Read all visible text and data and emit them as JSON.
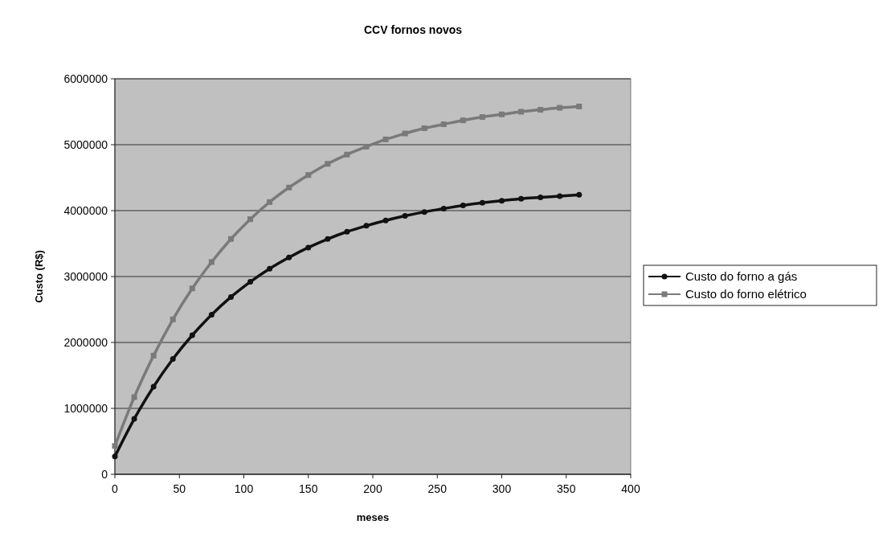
{
  "chart_data": {
    "type": "line",
    "title": "CCV fornos novos",
    "xlabel": "meses",
    "ylabel": "Custo (R$)",
    "x": [
      0,
      15,
      30,
      45,
      60,
      75,
      90,
      105,
      120,
      135,
      150,
      165,
      180,
      195,
      210,
      225,
      240,
      255,
      270,
      285,
      300,
      315,
      330,
      345,
      360
    ],
    "series": [
      {
        "name": "Custo do forno a gás",
        "color": "#111111",
        "marker": "circle",
        "values": [
          270000,
          840000,
          1330000,
          1750000,
          2110000,
          2420000,
          2690000,
          2920000,
          3120000,
          3290000,
          3440000,
          3570000,
          3680000,
          3770000,
          3850000,
          3920000,
          3980000,
          4030000,
          4080000,
          4120000,
          4150000,
          4180000,
          4200000,
          4220000,
          4240000
        ]
      },
      {
        "name": "Custo do forno elétrico",
        "color": "#7a7a7a",
        "marker": "square",
        "values": [
          430000,
          1170000,
          1800000,
          2350000,
          2820000,
          3220000,
          3570000,
          3870000,
          4130000,
          4350000,
          4540000,
          4710000,
          4850000,
          4970000,
          5080000,
          5170000,
          5250000,
          5310000,
          5370000,
          5420000,
          5460000,
          5500000,
          5530000,
          5560000,
          5580000
        ]
      }
    ],
    "xlim": [
      0,
      400
    ],
    "xticks": [
      0,
      50,
      100,
      150,
      200,
      250,
      300,
      350,
      400
    ],
    "ylim": [
      0,
      6000000
    ],
    "yticks": [
      0,
      1000000,
      2000000,
      3000000,
      4000000,
      5000000,
      6000000
    ],
    "grid": "y",
    "legend": "right",
    "line_style": "solid"
  }
}
